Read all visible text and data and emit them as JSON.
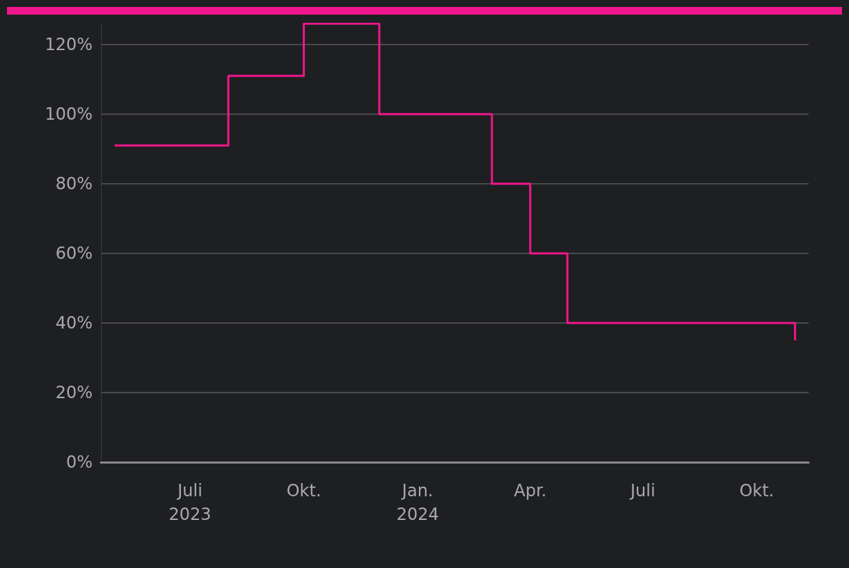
{
  "chart_data": {
    "type": "step",
    "color": "#f0168c",
    "x": [
      "2023-05-01",
      "2023-08-01",
      "2023-10-01",
      "2023-12-01",
      "2024-03-01",
      "2024-04-01",
      "2024-05-01",
      "2024-11-01"
    ],
    "values": [
      91,
      111,
      126,
      100,
      80,
      60,
      40,
      35
    ],
    "xlim": [
      "2023-04-20",
      "2024-11-12"
    ],
    "xticks": [
      {
        "value": "2023-07-01",
        "label": "Juli\n2023"
      },
      {
        "value": "2023-10-01",
        "label": "Okt."
      },
      {
        "value": "2024-01-01",
        "label": "Jan.\n2024"
      },
      {
        "value": "2024-04-01",
        "label": "Apr."
      },
      {
        "value": "2024-07-01",
        "label": "Juli"
      },
      {
        "value": "2024-10-01",
        "label": "Okt."
      }
    ],
    "yticks": [
      {
        "value": 0,
        "label": "0%"
      },
      {
        "value": 20,
        "label": "20%"
      },
      {
        "value": 40,
        "label": "40%"
      },
      {
        "value": 60,
        "label": "60%"
      },
      {
        "value": 80,
        "label": "80%"
      },
      {
        "value": 100,
        "label": "100%"
      },
      {
        "value": 120,
        "label": "120%"
      }
    ],
    "ylim": [
      0,
      126
    ],
    "grid": "y",
    "marker": "none",
    "line_style": "solid"
  }
}
